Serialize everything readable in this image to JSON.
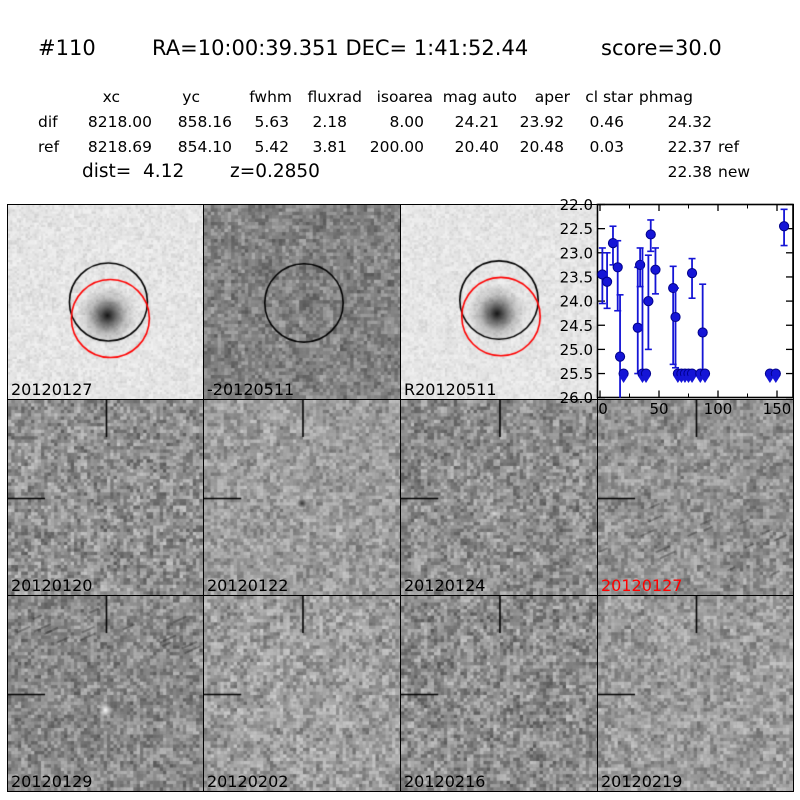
{
  "header": {
    "object_id": "#110",
    "coordinates": "RA=10:00:39.351 DEC= 1:41:52.44",
    "score": "score=30.0"
  },
  "photometry_table": {
    "columns": [
      "xc",
      "yc",
      "fwhm",
      "fluxrad",
      "isoarea",
      "mag auto",
      "aper",
      "cl star",
      "phmag"
    ],
    "rows": [
      {
        "label": "dif",
        "values": [
          "8218.00",
          "858.16",
          "5.63",
          "2.18",
          "8.00",
          "24.21",
          "23.92",
          "0.46",
          "24.32"
        ],
        "suffix": ""
      },
      {
        "label": "ref",
        "values": [
          "8218.69",
          "854.10",
          "5.42",
          "3.81",
          "200.00",
          "20.40",
          "20.48",
          "0.03",
          "22.37"
        ],
        "suffix": "ref"
      }
    ],
    "extra_phmag": {
      "value": "22.38",
      "suffix": "new"
    },
    "dist_label": "dist=  4.12",
    "redshift_label": "z=0.2850"
  },
  "cutouts": {
    "row1": [
      {
        "label": "20120127",
        "label_color": "#000000",
        "description": "new image with target, black and red apertures"
      },
      {
        "label": "-20120511",
        "label_color": "#000000",
        "description": "difference image, black aperture"
      },
      {
        "label": "R20120511",
        "label_color": "#000000",
        "description": "reference image with target, black and red apertures"
      }
    ],
    "row2": [
      {
        "label": "20120120",
        "label_color": "#000000"
      },
      {
        "label": "20120122",
        "label_color": "#000000"
      },
      {
        "label": "20120124",
        "label_color": "#000000"
      },
      {
        "label": "20120127",
        "label_color": "#ff0000"
      }
    ],
    "row3": [
      {
        "label": "20120129",
        "label_color": "#000000"
      },
      {
        "label": "20120202",
        "label_color": "#000000"
      },
      {
        "label": "20120216",
        "label_color": "#000000"
      },
      {
        "label": "20120219",
        "label_color": "#000000"
      }
    ],
    "aperture_colors": {
      "primary": "#000000",
      "secondary": "#ff0000"
    }
  },
  "chart_data": {
    "type": "scatter",
    "title": "",
    "xlabel": "",
    "ylabel": "",
    "xlim": [
      -3,
      163
    ],
    "ylim": [
      26.0,
      22.0
    ],
    "y_axis_inverted": true,
    "grid": false,
    "legend": false,
    "x_ticks": [
      0,
      50,
      100,
      150
    ],
    "x_tick_labels": [
      "0",
      "50",
      "100",
      "150"
    ],
    "x_minor_ticks": [
      25,
      75,
      125
    ],
    "y_ticks": [
      22.0,
      22.5,
      23.0,
      23.5,
      24.0,
      24.5,
      25.0,
      25.5,
      26.0
    ],
    "y_tick_labels": [
      "22.0",
      "22.5",
      "23.0",
      "23.5",
      "24.0",
      "24.5",
      "25.0",
      "25.5",
      "26.0"
    ],
    "marker_color": "#1515d6",
    "series": [
      {
        "name": "magnitude",
        "points": [
          {
            "x": 2,
            "y": 23.45,
            "err_up": 0.55,
            "err_down": 0.6
          },
          {
            "x": 6,
            "y": 23.6,
            "err_up": 0.6,
            "err_down": 0.55
          },
          {
            "x": 11,
            "y": 22.8,
            "err_up": 0.35,
            "err_down": 0.45
          },
          {
            "x": 15,
            "y": 23.3,
            "err_up": 0.55,
            "err_down": 0.9
          },
          {
            "x": 17,
            "y": 25.15,
            "err_up": 1.28,
            "err_down": 0.85
          },
          {
            "x": 32,
            "y": 24.55,
            "err_up": 1.25,
            "err_down": 0.95
          },
          {
            "x": 34,
            "y": 23.25,
            "err_up": 0.35,
            "err_down": 0.45
          },
          {
            "x": 41,
            "y": 24.0,
            "err_up": 0.95,
            "err_down": 1.0
          },
          {
            "x": 43,
            "y": 22.62,
            "err_up": 0.3,
            "err_down": 0.35
          },
          {
            "x": 47,
            "y": 23.35,
            "err_up": 0.45,
            "err_down": 0.5
          },
          {
            "x": 62,
            "y": 23.73,
            "err_up": 0.45,
            "err_down": 1.58
          },
          {
            "x": 64,
            "y": 24.33,
            "err_up": 0.6,
            "err_down": 1.05
          },
          {
            "x": 78,
            "y": 23.42,
            "err_up": 0.3,
            "err_down": 0.52
          },
          {
            "x": 87,
            "y": 24.65,
            "err_up": 1.0,
            "err_down": 0.85
          },
          {
            "x": 156,
            "y": 22.45,
            "err_up": 0.35,
            "err_down": 0.4
          }
        ]
      }
    ],
    "upper_limits": {
      "y": 25.5,
      "x": [
        20,
        36,
        39,
        66,
        69,
        72,
        75,
        78,
        85,
        89,
        144,
        149
      ],
      "bars": {
        "36": 22.9
      }
    }
  }
}
